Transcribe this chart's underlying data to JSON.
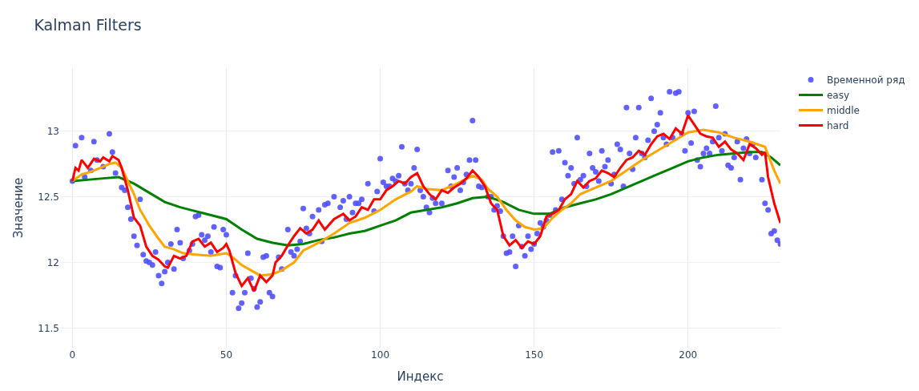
{
  "chart_data": {
    "type": "line",
    "title": "Kalman Filters",
    "xlabel": "Индекс",
    "ylabel": "Значение",
    "xlim": [
      -4,
      230
    ],
    "ylim": [
      11.35,
      13.48
    ],
    "xticks": [
      0,
      50,
      100,
      150,
      200
    ],
    "yticks": [
      11.5,
      12,
      12.5,
      13
    ],
    "grid": true,
    "legend": "top right",
    "line_style": "solid",
    "series": [
      {
        "name": "Временной ряд",
        "type": "scatter",
        "marker": "circle",
        "color": "#5050ff",
        "x": [
          0,
          1,
          3,
          4,
          6,
          7,
          8,
          10,
          12,
          13,
          14,
          16,
          17,
          18,
          19,
          20,
          21,
          22,
          23,
          24,
          25,
          26,
          27,
          28,
          29,
          30,
          31,
          32,
          33,
          34,
          35,
          36,
          38,
          39,
          40,
          41,
          42,
          43,
          44,
          45,
          46,
          47,
          48,
          49,
          50,
          52,
          53,
          54,
          55,
          56,
          57,
          58,
          59,
          60,
          61,
          62,
          63,
          64,
          65,
          67,
          68,
          70,
          71,
          72,
          73,
          74,
          75,
          76,
          77,
          78,
          80,
          81,
          82,
          83,
          85,
          87,
          88,
          89,
          90,
          91,
          92,
          93,
          94,
          96,
          98,
          99,
          100,
          101,
          102,
          103,
          104,
          105,
          106,
          107,
          108,
          109,
          110,
          111,
          112,
          113,
          114,
          115,
          116,
          117,
          118,
          120,
          122,
          123,
          124,
          125,
          126,
          127,
          128,
          129,
          130,
          131,
          132,
          133,
          135,
          136,
          137,
          138,
          139,
          140,
          141,
          142,
          143,
          144,
          145,
          146,
          147,
          148,
          149,
          150,
          151,
          152,
          153,
          154,
          155,
          156,
          157,
          158,
          159,
          160,
          161,
          162,
          163,
          164,
          165,
          166,
          167,
          168,
          169,
          170,
          171,
          172,
          173,
          174,
          175,
          176,
          177,
          178,
          179,
          180,
          181,
          182,
          183,
          184,
          185,
          186,
          187,
          188,
          189,
          190,
          191,
          192,
          193,
          194,
          195,
          196,
          197,
          198,
          199,
          200,
          201,
          202,
          203,
          204,
          205,
          206,
          207,
          208,
          209,
          210,
          211,
          212,
          213,
          214,
          215,
          216,
          217,
          218,
          219,
          220,
          221,
          222,
          224,
          225,
          226,
          227,
          228,
          229,
          230
        ],
        "values": [
          12.62,
          12.89,
          12.95,
          12.65,
          12.7,
          12.92,
          12.78,
          12.73,
          12.98,
          12.84,
          12.68,
          12.57,
          12.55,
          12.42,
          12.33,
          12.2,
          12.13,
          12.48,
          12.06,
          12.01,
          12,
          11.98,
          12.08,
          11.9,
          11.84,
          11.93,
          12,
          12.14,
          11.95,
          12.25,
          12.15,
          12.03,
          12.09,
          12.14,
          12.35,
          12.36,
          12.21,
          12.17,
          12.2,
          12.08,
          12.27,
          11.97,
          11.96,
          12.25,
          12.21,
          11.77,
          11.9,
          11.65,
          11.69,
          11.77,
          12.07,
          11.88,
          11.8,
          11.66,
          11.7,
          12.04,
          12.05,
          11.77,
          11.74,
          12.04,
          11.95,
          12.25,
          12.08,
          12.05,
          12.1,
          12.16,
          12.41,
          12.26,
          12.22,
          12.35,
          12.4,
          12.16,
          12.44,
          12.45,
          12.5,
          12.42,
          12.47,
          12.33,
          12.5,
          12.38,
          12.45,
          12.45,
          12.48,
          12.6,
          12.39,
          12.54,
          12.79,
          12.61,
          12.58,
          12.58,
          12.64,
          12.62,
          12.66,
          12.88,
          12.6,
          12.55,
          12.6,
          12.72,
          12.86,
          12.55,
          12.5,
          12.42,
          12.38,
          12.49,
          12.45,
          12.45,
          12.7,
          12.58,
          12.65,
          12.72,
          12.55,
          12.61,
          12.67,
          12.78,
          13.08,
          12.78,
          12.58,
          12.57,
          12.5,
          12.5,
          12.4,
          12.43,
          12.39,
          12.2,
          12.07,
          12.08,
          12.2,
          11.97,
          12.28,
          12.12,
          12.05,
          12.2,
          12.1,
          12.14,
          12.22,
          12.3,
          12.27,
          12.32,
          12.36,
          12.84,
          12.4,
          12.85,
          12.48,
          12.76,
          12.66,
          12.72,
          12.6,
          12.95,
          12.63,
          12.66,
          12.58,
          12.83,
          12.72,
          12.69,
          12.62,
          12.85,
          12.73,
          12.78,
          12.6,
          12.67,
          12.9,
          12.86,
          12.58,
          13.18,
          12.83,
          12.71,
          12.95,
          13.18,
          12.83,
          12.8,
          12.93,
          13.25,
          13,
          13.05,
          13.14,
          12.95,
          12.9,
          13.3,
          12.95,
          13.29,
          13.3,
          12.98,
          12.85,
          13.14,
          12.91,
          13.15,
          12.78,
          12.73,
          12.83,
          12.87,
          12.83,
          12.92,
          13.19,
          12.95,
          12.85,
          12.98,
          12.74,
          12.72,
          12.8,
          12.92,
          12.63,
          12.87,
          12.94,
          12.83,
          12.9,
          12.8,
          12.63,
          12.45,
          12.4,
          12.22,
          12.24,
          12.17,
          12.14
        ]
      },
      {
        "name": "easy",
        "color": "#008000",
        "x": [
          0,
          10,
          15,
          20,
          25,
          30,
          35,
          40,
          45,
          50,
          55,
          60,
          65,
          70,
          75,
          80,
          85,
          90,
          95,
          100,
          105,
          110,
          115,
          120,
          125,
          130,
          135,
          140,
          145,
          150,
          155,
          160,
          165,
          170,
          175,
          180,
          185,
          190,
          195,
          200,
          205,
          210,
          215,
          220,
          224,
          227,
          230
        ],
        "values": [
          12.62,
          12.64,
          12.65,
          12.6,
          12.53,
          12.46,
          12.42,
          12.39,
          12.36,
          12.33,
          12.25,
          12.18,
          12.15,
          12.13,
          12.14,
          12.17,
          12.19,
          12.22,
          12.24,
          12.28,
          12.32,
          12.38,
          12.4,
          12.42,
          12.45,
          12.49,
          12.5,
          12.46,
          12.4,
          12.37,
          12.37,
          12.42,
          12.45,
          12.48,
          12.52,
          12.57,
          12.62,
          12.67,
          12.72,
          12.77,
          12.8,
          12.82,
          12.83,
          12.84,
          12.84,
          12.8,
          12.74
        ]
      },
      {
        "name": "middle",
        "color": "#ffa500",
        "x": [
          0,
          3,
          6,
          9,
          12,
          14,
          16,
          18,
          20,
          22,
          25,
          28,
          30,
          33,
          36,
          40,
          45,
          50,
          52,
          55,
          58,
          61,
          65,
          68,
          72,
          75,
          80,
          85,
          90,
          95,
          100,
          105,
          110,
          112,
          115,
          120,
          125,
          130,
          133,
          135,
          138,
          141,
          144,
          147,
          150,
          153,
          156,
          159,
          162,
          165,
          170,
          175,
          180,
          185,
          190,
          195,
          200,
          205,
          210,
          215,
          220,
          225,
          228,
          230
        ],
        "values": [
          12.62,
          12.67,
          12.69,
          12.72,
          12.75,
          12.76,
          12.72,
          12.62,
          12.52,
          12.4,
          12.28,
          12.18,
          12.12,
          12.1,
          12.07,
          12.06,
          12.05,
          12.07,
          12.04,
          11.98,
          11.94,
          11.9,
          11.91,
          11.94,
          12,
          12.09,
          12.15,
          12.22,
          12.3,
          12.34,
          12.4,
          12.48,
          12.54,
          12.58,
          12.56,
          12.55,
          12.6,
          12.66,
          12.63,
          12.56,
          12.5,
          12.4,
          12.32,
          12.27,
          12.25,
          12.26,
          12.34,
          12.4,
          12.45,
          12.52,
          12.57,
          12.62,
          12.7,
          12.78,
          12.85,
          12.92,
          12.99,
          13.01,
          12.99,
          12.95,
          12.92,
          12.88,
          12.7,
          12.6
        ]
      },
      {
        "name": "hard",
        "color": "#ff0000",
        "x": [
          0,
          1,
          2,
          3,
          5,
          7,
          9,
          10,
          12,
          13,
          15,
          16,
          18,
          20,
          22,
          24,
          26,
          28,
          30,
          31,
          33,
          35,
          37,
          39,
          41,
          43,
          45,
          47,
          49,
          50,
          51,
          53,
          55,
          57,
          59,
          61,
          63,
          65,
          66,
          68,
          70,
          72,
          74,
          76,
          78,
          80,
          82,
          85,
          88,
          90,
          92,
          94,
          96,
          98,
          100,
          102,
          104,
          106,
          108,
          110,
          112,
          114,
          116,
          118,
          120,
          122,
          124,
          126,
          128,
          130,
          132,
          134,
          136,
          138,
          140,
          142,
          144,
          146,
          148,
          150,
          152,
          154,
          156,
          158,
          160,
          162,
          164,
          166,
          168,
          170,
          172,
          174,
          176,
          178,
          180,
          182,
          184,
          186,
          188,
          190,
          192,
          194,
          196,
          198,
          200,
          202,
          204,
          206,
          208,
          210,
          212,
          214,
          216,
          218,
          220,
          222,
          224,
          225,
          226,
          228,
          230
        ],
        "values": [
          12.62,
          12.72,
          12.7,
          12.78,
          12.72,
          12.79,
          12.77,
          12.8,
          12.77,
          12.81,
          12.78,
          12.72,
          12.55,
          12.34,
          12.28,
          12.12,
          12.05,
          12.02,
          11.97,
          11.96,
          12.05,
          12.03,
          12.05,
          12.16,
          12.18,
          12.12,
          12.15,
          12.08,
          12.11,
          12.14,
          12.09,
          11.92,
          11.82,
          11.88,
          11.78,
          11.9,
          11.85,
          11.9,
          12,
          12.05,
          12.13,
          12.2,
          12.26,
          12.22,
          12.25,
          12.32,
          12.25,
          12.33,
          12.37,
          12.32,
          12.35,
          12.42,
          12.4,
          12.48,
          12.48,
          12.55,
          12.58,
          12.62,
          12.6,
          12.65,
          12.68,
          12.58,
          12.52,
          12.48,
          12.55,
          12.53,
          12.57,
          12.6,
          12.64,
          12.7,
          12.65,
          12.58,
          12.45,
          12.4,
          12.2,
          12.13,
          12.17,
          12.11,
          12.16,
          12.14,
          12.2,
          12.35,
          12.37,
          12.4,
          12.48,
          12.52,
          12.62,
          12.57,
          12.62,
          12.64,
          12.7,
          12.68,
          12.65,
          12.72,
          12.78,
          12.8,
          12.85,
          12.82,
          12.9,
          12.96,
          12.98,
          12.94,
          13.02,
          12.98,
          13.12,
          13.05,
          12.98,
          12.96,
          12.95,
          12.88,
          12.92,
          12.86,
          12.83,
          12.78,
          12.9,
          12.87,
          12.82,
          12.84,
          12.65,
          12.45,
          12.3
        ]
      }
    ]
  }
}
